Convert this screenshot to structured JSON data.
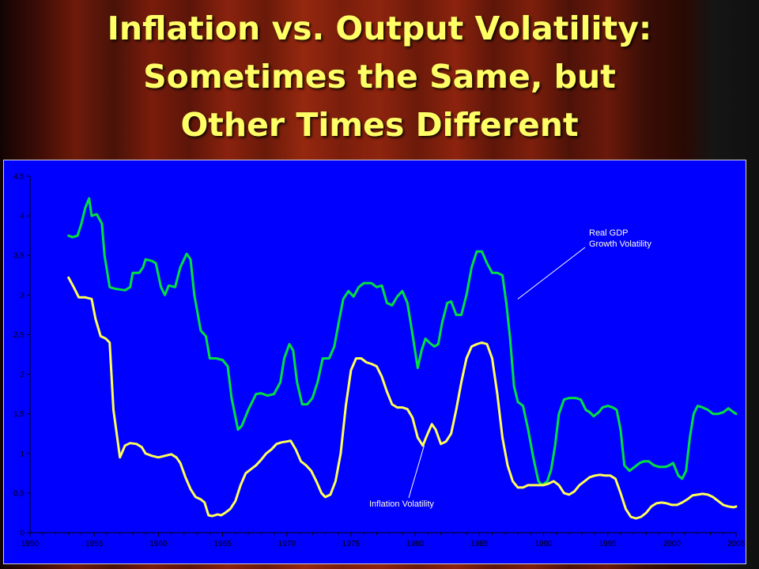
{
  "slide": {
    "title_lines": [
      "Inflation vs. Output Volatility:",
      "Sometimes the Same, but",
      "Other Times Different"
    ]
  },
  "chart_data": {
    "type": "line",
    "title": "",
    "xlabel": "",
    "ylabel": "",
    "xlim": [
      1950,
      2005
    ],
    "ylim": [
      0,
      4.5
    ],
    "grid": false,
    "legend": "none",
    "x_ticks": [
      "1950",
      "1955",
      "1960",
      "1965",
      "1970",
      "1975",
      "1980",
      "1985",
      "1990",
      "1995",
      "2000",
      "2005"
    ],
    "y_ticks": [
      "0",
      "0.5",
      "1",
      "1.5",
      "2",
      "2.5",
      "3",
      "3.5",
      "4",
      "4.5"
    ],
    "annotations": [
      {
        "series": "gdp",
        "lines": [
          "Real GDP",
          "Growth Volatility"
        ],
        "point": [
          1988,
          2.95
        ]
      },
      {
        "series": "inflation",
        "lines": [
          "Inflation Volatility"
        ],
        "point": [
          1980.7,
          1.1
        ]
      }
    ],
    "series": [
      {
        "id": "gdp",
        "color": "#00e040",
        "points": [
          [
            1953.0,
            3.75
          ],
          [
            1953.3,
            3.73
          ],
          [
            1953.7,
            3.75
          ],
          [
            1954.0,
            3.9
          ],
          [
            1954.3,
            4.1
          ],
          [
            1954.6,
            4.22
          ],
          [
            1954.8,
            4.0
          ],
          [
            1955.2,
            4.02
          ],
          [
            1955.6,
            3.9
          ],
          [
            1955.8,
            3.5
          ],
          [
            1956.2,
            3.1
          ],
          [
            1956.6,
            3.08
          ],
          [
            1957.0,
            3.07
          ],
          [
            1957.4,
            3.06
          ],
          [
            1957.8,
            3.1
          ],
          [
            1958.0,
            3.28
          ],
          [
            1958.5,
            3.28
          ],
          [
            1958.8,
            3.35
          ],
          [
            1959.0,
            3.45
          ],
          [
            1959.5,
            3.43
          ],
          [
            1959.8,
            3.4
          ],
          [
            1960.2,
            3.1
          ],
          [
            1960.5,
            3.0
          ],
          [
            1960.8,
            3.12
          ],
          [
            1961.3,
            3.1
          ],
          [
            1961.7,
            3.35
          ],
          [
            1962.2,
            3.52
          ],
          [
            1962.5,
            3.45
          ],
          [
            1962.8,
            3.0
          ],
          [
            1963.3,
            2.55
          ],
          [
            1963.7,
            2.48
          ],
          [
            1964.0,
            2.2
          ],
          [
            1964.5,
            2.2
          ],
          [
            1965.0,
            2.18
          ],
          [
            1965.4,
            2.1
          ],
          [
            1965.7,
            1.7
          ],
          [
            1966.2,
            1.3
          ],
          [
            1966.5,
            1.35
          ],
          [
            1967.0,
            1.55
          ],
          [
            1967.6,
            1.75
          ],
          [
            1968.0,
            1.76
          ],
          [
            1968.5,
            1.73
          ],
          [
            1969.0,
            1.75
          ],
          [
            1969.5,
            1.9
          ],
          [
            1969.8,
            2.2
          ],
          [
            1970.2,
            2.38
          ],
          [
            1970.5,
            2.3
          ],
          [
            1970.8,
            1.9
          ],
          [
            1971.2,
            1.62
          ],
          [
            1971.6,
            1.62
          ],
          [
            1972.0,
            1.7
          ],
          [
            1972.4,
            1.9
          ],
          [
            1972.8,
            2.2
          ],
          [
            1973.3,
            2.2
          ],
          [
            1973.7,
            2.35
          ],
          [
            1974.1,
            2.7
          ],
          [
            1974.4,
            2.95
          ],
          [
            1974.8,
            3.05
          ],
          [
            1975.2,
            2.98
          ],
          [
            1975.6,
            3.1
          ],
          [
            1976.0,
            3.15
          ],
          [
            1976.6,
            3.15
          ],
          [
            1977.0,
            3.1
          ],
          [
            1977.4,
            3.12
          ],
          [
            1977.8,
            2.9
          ],
          [
            1978.2,
            2.87
          ],
          [
            1978.6,
            2.98
          ],
          [
            1979.0,
            3.05
          ],
          [
            1979.4,
            2.9
          ],
          [
            1979.8,
            2.5
          ],
          [
            1980.2,
            2.08
          ],
          [
            1980.5,
            2.3
          ],
          [
            1980.8,
            2.45
          ],
          [
            1981.1,
            2.4
          ],
          [
            1981.5,
            2.35
          ],
          [
            1981.8,
            2.38
          ],
          [
            1982.1,
            2.65
          ],
          [
            1982.5,
            2.9
          ],
          [
            1982.8,
            2.92
          ],
          [
            1983.2,
            2.75
          ],
          [
            1983.6,
            2.75
          ],
          [
            1984.0,
            3.0
          ],
          [
            1984.4,
            3.35
          ],
          [
            1984.8,
            3.55
          ],
          [
            1985.2,
            3.55
          ],
          [
            1985.6,
            3.4
          ],
          [
            1986.0,
            3.28
          ],
          [
            1986.4,
            3.28
          ],
          [
            1986.8,
            3.25
          ],
          [
            1987.1,
            2.9
          ],
          [
            1987.4,
            2.45
          ],
          [
            1987.7,
            1.85
          ],
          [
            1988.0,
            1.65
          ],
          [
            1988.4,
            1.6
          ],
          [
            1988.8,
            1.3
          ],
          [
            1989.2,
            0.95
          ],
          [
            1989.6,
            0.65
          ],
          [
            1989.9,
            0.6
          ],
          [
            1990.3,
            0.65
          ],
          [
            1990.6,
            0.8
          ],
          [
            1990.9,
            1.1
          ],
          [
            1991.2,
            1.5
          ],
          [
            1991.6,
            1.68
          ],
          [
            1992.0,
            1.7
          ],
          [
            1992.5,
            1.7
          ],
          [
            1992.9,
            1.68
          ],
          [
            1993.3,
            1.55
          ],
          [
            1993.6,
            1.52
          ],
          [
            1993.9,
            1.47
          ],
          [
            1994.3,
            1.52
          ],
          [
            1994.6,
            1.58
          ],
          [
            1995.0,
            1.6
          ],
          [
            1995.4,
            1.58
          ],
          [
            1995.7,
            1.55
          ],
          [
            1996.0,
            1.3
          ],
          [
            1996.3,
            0.85
          ],
          [
            1996.7,
            0.78
          ],
          [
            1997.1,
            0.83
          ],
          [
            1997.5,
            0.88
          ],
          [
            1997.8,
            0.9
          ],
          [
            1998.2,
            0.9
          ],
          [
            1998.6,
            0.85
          ],
          [
            1999.0,
            0.83
          ],
          [
            1999.5,
            0.83
          ],
          [
            1999.8,
            0.85
          ],
          [
            2000.1,
            0.88
          ],
          [
            2000.5,
            0.72
          ],
          [
            2000.8,
            0.68
          ],
          [
            2001.1,
            0.78
          ],
          [
            2001.4,
            1.2
          ],
          [
            2001.7,
            1.5
          ],
          [
            2002.0,
            1.6
          ],
          [
            2002.4,
            1.58
          ],
          [
            2002.8,
            1.55
          ],
          [
            2003.2,
            1.5
          ],
          [
            2003.6,
            1.5
          ],
          [
            2004.0,
            1.52
          ],
          [
            2004.4,
            1.57
          ],
          [
            2004.8,
            1.52
          ],
          [
            2005.0,
            1.5
          ]
        ]
      },
      {
        "id": "inflation",
        "color": "#ffff55",
        "points": [
          [
            1953.0,
            3.22
          ],
          [
            1953.4,
            3.1
          ],
          [
            1953.8,
            2.97
          ],
          [
            1954.3,
            2.97
          ],
          [
            1954.8,
            2.95
          ],
          [
            1955.1,
            2.7
          ],
          [
            1955.5,
            2.48
          ],
          [
            1955.9,
            2.45
          ],
          [
            1956.2,
            2.4
          ],
          [
            1956.5,
            1.55
          ],
          [
            1957.0,
            0.95
          ],
          [
            1957.4,
            1.1
          ],
          [
            1957.8,
            1.13
          ],
          [
            1958.3,
            1.12
          ],
          [
            1958.7,
            1.08
          ],
          [
            1959.0,
            1.0
          ],
          [
            1959.5,
            0.97
          ],
          [
            1960.0,
            0.95
          ],
          [
            1960.5,
            0.97
          ],
          [
            1961.0,
            0.99
          ],
          [
            1961.4,
            0.95
          ],
          [
            1961.7,
            0.88
          ],
          [
            1962.1,
            0.7
          ],
          [
            1962.5,
            0.55
          ],
          [
            1962.9,
            0.45
          ],
          [
            1963.3,
            0.42
          ],
          [
            1963.6,
            0.38
          ],
          [
            1963.9,
            0.22
          ],
          [
            1964.2,
            0.21
          ],
          [
            1964.6,
            0.23
          ],
          [
            1964.9,
            0.22
          ],
          [
            1965.2,
            0.25
          ],
          [
            1965.6,
            0.3
          ],
          [
            1966.0,
            0.4
          ],
          [
            1966.4,
            0.6
          ],
          [
            1966.8,
            0.75
          ],
          [
            1967.2,
            0.8
          ],
          [
            1967.6,
            0.85
          ],
          [
            1968.0,
            0.92
          ],
          [
            1968.4,
            1.0
          ],
          [
            1968.8,
            1.05
          ],
          [
            1969.2,
            1.12
          ],
          [
            1969.6,
            1.14
          ],
          [
            1970.0,
            1.15
          ],
          [
            1970.3,
            1.16
          ],
          [
            1970.7,
            1.05
          ],
          [
            1971.1,
            0.9
          ],
          [
            1971.5,
            0.85
          ],
          [
            1971.9,
            0.78
          ],
          [
            1972.3,
            0.65
          ],
          [
            1972.7,
            0.5
          ],
          [
            1973.0,
            0.45
          ],
          [
            1973.4,
            0.48
          ],
          [
            1973.8,
            0.65
          ],
          [
            1974.2,
            1.0
          ],
          [
            1974.6,
            1.6
          ],
          [
            1975.0,
            2.05
          ],
          [
            1975.4,
            2.2
          ],
          [
            1975.8,
            2.2
          ],
          [
            1976.2,
            2.15
          ],
          [
            1976.6,
            2.13
          ],
          [
            1977.0,
            2.1
          ],
          [
            1977.4,
            1.97
          ],
          [
            1977.8,
            1.78
          ],
          [
            1978.2,
            1.62
          ],
          [
            1978.6,
            1.58
          ],
          [
            1979.0,
            1.58
          ],
          [
            1979.4,
            1.56
          ],
          [
            1979.8,
            1.45
          ],
          [
            1980.2,
            1.2
          ],
          [
            1980.6,
            1.1
          ],
          [
            1980.9,
            1.22
          ],
          [
            1981.3,
            1.37
          ],
          [
            1981.6,
            1.3
          ],
          [
            1982.0,
            1.12
          ],
          [
            1982.4,
            1.15
          ],
          [
            1982.8,
            1.25
          ],
          [
            1983.2,
            1.55
          ],
          [
            1983.6,
            1.9
          ],
          [
            1984.0,
            2.2
          ],
          [
            1984.4,
            2.35
          ],
          [
            1984.8,
            2.38
          ],
          [
            1985.2,
            2.4
          ],
          [
            1985.6,
            2.38
          ],
          [
            1986.0,
            2.2
          ],
          [
            1986.4,
            1.75
          ],
          [
            1986.8,
            1.2
          ],
          [
            1987.2,
            0.85
          ],
          [
            1987.6,
            0.65
          ],
          [
            1988.0,
            0.57
          ],
          [
            1988.4,
            0.57
          ],
          [
            1988.8,
            0.6
          ],
          [
            1989.2,
            0.6
          ],
          [
            1989.6,
            0.6
          ],
          [
            1990.0,
            0.6
          ],
          [
            1990.4,
            0.62
          ],
          [
            1990.8,
            0.65
          ],
          [
            1991.2,
            0.6
          ],
          [
            1991.6,
            0.5
          ],
          [
            1992.0,
            0.48
          ],
          [
            1992.4,
            0.52
          ],
          [
            1992.8,
            0.6
          ],
          [
            1993.2,
            0.65
          ],
          [
            1993.6,
            0.7
          ],
          [
            1994.0,
            0.72
          ],
          [
            1994.4,
            0.73
          ],
          [
            1994.8,
            0.72
          ],
          [
            1995.2,
            0.72
          ],
          [
            1995.6,
            0.68
          ],
          [
            1996.0,
            0.5
          ],
          [
            1996.4,
            0.3
          ],
          [
            1996.8,
            0.2
          ],
          [
            1997.2,
            0.18
          ],
          [
            1997.6,
            0.2
          ],
          [
            1998.0,
            0.25
          ],
          [
            1998.4,
            0.33
          ],
          [
            1998.8,
            0.37
          ],
          [
            1999.2,
            0.38
          ],
          [
            1999.6,
            0.37
          ],
          [
            2000.0,
            0.35
          ],
          [
            2000.4,
            0.35
          ],
          [
            2000.8,
            0.38
          ],
          [
            2001.2,
            0.42
          ],
          [
            2001.6,
            0.47
          ],
          [
            2002.0,
            0.48
          ],
          [
            2002.4,
            0.49
          ],
          [
            2002.8,
            0.48
          ],
          [
            2003.2,
            0.45
          ],
          [
            2003.6,
            0.4
          ],
          [
            2004.0,
            0.35
          ],
          [
            2004.4,
            0.33
          ],
          [
            2004.8,
            0.32
          ],
          [
            2005.0,
            0.33
          ]
        ]
      }
    ]
  }
}
